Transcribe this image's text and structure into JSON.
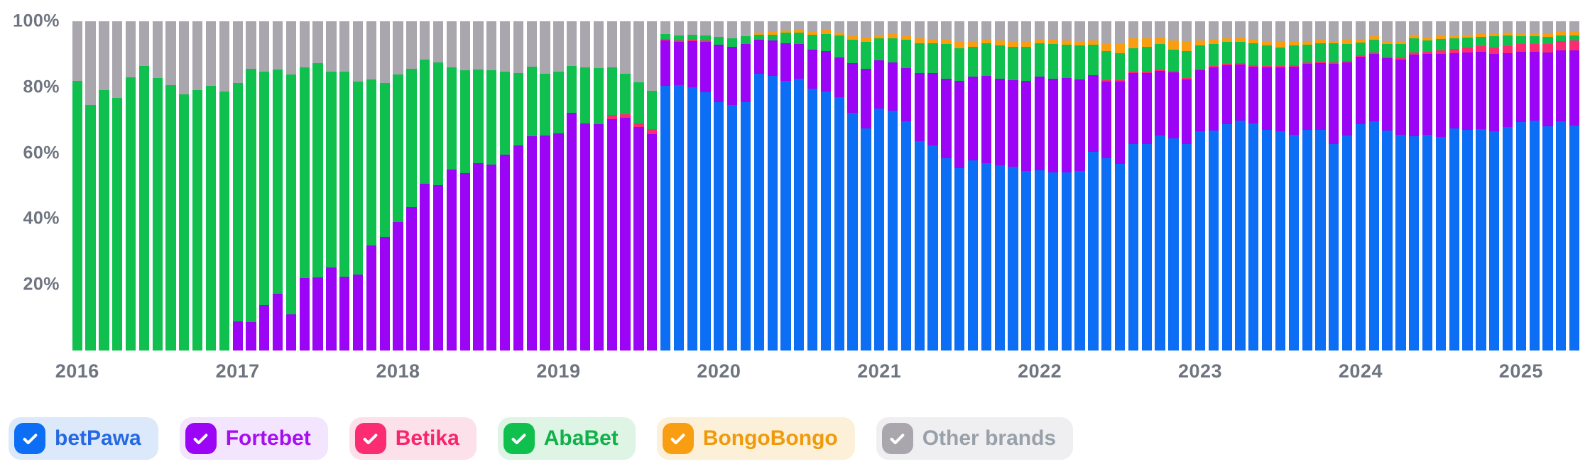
{
  "page": {
    "background": "#ffffff"
  },
  "y_axis": {
    "ticks": [
      "100%",
      "80%",
      "60%",
      "40%",
      "20%"
    ],
    "color": "#6e7480"
  },
  "x_axis": {
    "labels": [
      "2016",
      "2017",
      "2018",
      "2019",
      "2020",
      "2021",
      "2022",
      "2023",
      "2024",
      "2025"
    ],
    "color": "#6e7480"
  },
  "legend": {
    "position": "bottom-left",
    "items": [
      {
        "label": "betPawa",
        "checked": true,
        "color": "#0b6ef5",
        "bg": "#dce9fb",
        "text_color": "#2668e3"
      },
      {
        "label": "Fortebet",
        "checked": true,
        "color": "#9b04f5",
        "bg": "#f3e5fd",
        "text_color": "#a60df2"
      },
      {
        "label": "Betika",
        "checked": true,
        "color": "#fb2c72",
        "bg": "#fce1eb",
        "text_color": "#f8246c"
      },
      {
        "label": "AbaBet",
        "checked": true,
        "color": "#10c04f",
        "bg": "#def4e4",
        "text_color": "#0fb14a"
      },
      {
        "label": "BongoBongo",
        "checked": true,
        "color": "#f99e12",
        "bg": "#fcf0d8",
        "text_color": "#f0990a"
      },
      {
        "label": "Other brands",
        "checked": true,
        "color": "#a9a6ad",
        "bg": "#efeef0",
        "text_color": "#98a0aa"
      }
    ]
  },
  "chart_data": {
    "type": "bar",
    "stacked": true,
    "unit": "percent",
    "ylim": [
      0,
      100
    ],
    "grid": false,
    "frequency": "monthly",
    "x_start": "2016-01",
    "x_end": "2025-05",
    "series_names": [
      "betPawa",
      "Fortebet",
      "Betika",
      "AbaBet",
      "BongoBongo",
      "Other brands"
    ],
    "values": [
      [
        0,
        0,
        0,
        82.0,
        0,
        18.0
      ],
      [
        0,
        0,
        0,
        74.5,
        0,
        25.5
      ],
      [
        0,
        0,
        0,
        79.1,
        0,
        20.9
      ],
      [
        0,
        0,
        0,
        76.7,
        0,
        23.3
      ],
      [
        0,
        0,
        0,
        83.0,
        0,
        17.0
      ],
      [
        0,
        0,
        0,
        86.5,
        0,
        13.5
      ],
      [
        0,
        0,
        0,
        82.7,
        0,
        17.3
      ],
      [
        0,
        0,
        0,
        80.7,
        0,
        19.3
      ],
      [
        0,
        0,
        0,
        77.8,
        0,
        22.2
      ],
      [
        0,
        0,
        0,
        79.1,
        0,
        20.9
      ],
      [
        0,
        0,
        0,
        80.3,
        0,
        19.7
      ],
      [
        0,
        0,
        0,
        78.7,
        0,
        21.3
      ],
      [
        0,
        8.8,
        0,
        72.5,
        0,
        18.7
      ],
      [
        0,
        8.7,
        0,
        76.9,
        0,
        14.4
      ],
      [
        0,
        13.9,
        0,
        70.7,
        0,
        15.4
      ],
      [
        0,
        17.3,
        0,
        68.1,
        0,
        14.6
      ],
      [
        0,
        11.0,
        0,
        72.8,
        0,
        16.2
      ],
      [
        0,
        21.9,
        0,
        64.0,
        0,
        14.1
      ],
      [
        0,
        22.3,
        0,
        65.0,
        0,
        12.7
      ],
      [
        0,
        25.3,
        0,
        59.4,
        0,
        15.3
      ],
      [
        0,
        22.4,
        0,
        62.2,
        0,
        15.4
      ],
      [
        0,
        23.1,
        0,
        58.5,
        0,
        18.4
      ],
      [
        0,
        31.8,
        0,
        50.5,
        0,
        17.7
      ],
      [
        0,
        34.4,
        0,
        46.9,
        0,
        18.7
      ],
      [
        0,
        39.0,
        0,
        44.8,
        0,
        16.2
      ],
      [
        0,
        43.5,
        0,
        42.1,
        0,
        14.4
      ],
      [
        0,
        50.7,
        0,
        37.6,
        0,
        11.7
      ],
      [
        0,
        50.3,
        0,
        37.2,
        0,
        12.5
      ],
      [
        0,
        55.0,
        0,
        30.9,
        0,
        14.1
      ],
      [
        0,
        53.8,
        0,
        31.3,
        0,
        14.9
      ],
      [
        0,
        56.9,
        0,
        28.5,
        0,
        14.6
      ],
      [
        0,
        56.5,
        0,
        28.6,
        0,
        14.9
      ],
      [
        0,
        59.4,
        0,
        25.2,
        0,
        15.4
      ],
      [
        0,
        62.3,
        0,
        22.0,
        0,
        15.7
      ],
      [
        0,
        65.0,
        0,
        21.2,
        0,
        13.8
      ],
      [
        0,
        65.3,
        0,
        18.7,
        0,
        16.0
      ],
      [
        0,
        65.9,
        0,
        18.7,
        0,
        15.4
      ],
      [
        0,
        72.3,
        0,
        14.1,
        0,
        13.6
      ],
      [
        0,
        69.0,
        0,
        16.9,
        0,
        14.1
      ],
      [
        0,
        68.8,
        0,
        16.9,
        0,
        14.3
      ],
      [
        0,
        70.3,
        1.3,
        14.3,
        0,
        14.1
      ],
      [
        0,
        70.7,
        1.0,
        12.3,
        0,
        16.0
      ],
      [
        0,
        67.9,
        1.1,
        12.5,
        0,
        18.5
      ],
      [
        0,
        65.7,
        1.5,
        11.7,
        0,
        21.1
      ],
      [
        80.4,
        13.8,
        0.5,
        1.4,
        0,
        3.9
      ],
      [
        80.6,
        13.1,
        0.5,
        1.6,
        0,
        4.2
      ],
      [
        80.0,
        13.9,
        0.5,
        1.6,
        0,
        4.0
      ],
      [
        78.4,
        15.3,
        0.5,
        1.4,
        0,
        4.4
      ],
      [
        75.4,
        17.4,
        0,
        2.4,
        0,
        4.8
      ],
      [
        74.5,
        17.8,
        0,
        2.5,
        0,
        5.2
      ],
      [
        75.5,
        17.7,
        0,
        2.2,
        0,
        4.6
      ],
      [
        84.0,
        10.4,
        0,
        1.5,
        0.7,
        3.4
      ],
      [
        83.5,
        10.7,
        0,
        1.8,
        0.7,
        3.3
      ],
      [
        81.8,
        11.5,
        0,
        3.3,
        0.7,
        2.7
      ],
      [
        82.5,
        10.6,
        0,
        3.5,
        0.8,
        2.6
      ],
      [
        79.6,
        11.7,
        0,
        4.6,
        1.0,
        3.1
      ],
      [
        78.7,
        12.2,
        0,
        5.3,
        1.2,
        2.6
      ],
      [
        77.0,
        12.1,
        0,
        6.5,
        1.0,
        3.4
      ],
      [
        72.2,
        15.1,
        0,
        7.2,
        1.2,
        4.3
      ],
      [
        67.4,
        18.2,
        0,
        8.2,
        1.3,
        4.9
      ],
      [
        73.6,
        14.6,
        0,
        6.6,
        1.1,
        4.1
      ],
      [
        72.9,
        14.6,
        0,
        7.4,
        1.5,
        3.6
      ],
      [
        69.6,
        16.2,
        0,
        8.7,
        1.0,
        4.5
      ],
      [
        63.6,
        20.6,
        0,
        9.2,
        1.4,
        5.2
      ],
      [
        62.3,
        22.0,
        0,
        9.0,
        1.2,
        5.5
      ],
      [
        58.5,
        24.0,
        0,
        10.6,
        1.3,
        5.6
      ],
      [
        55.4,
        26.6,
        0,
        9.8,
        2.0,
        6.2
      ],
      [
        57.7,
        25.5,
        0,
        9.0,
        1.5,
        6.3
      ],
      [
        57.0,
        26.5,
        0,
        9.8,
        1.1,
        5.6
      ],
      [
        56.3,
        26.2,
        0,
        10.2,
        1.5,
        5.8
      ],
      [
        55.8,
        26.3,
        0,
        10.2,
        1.7,
        6.0
      ],
      [
        54.5,
        27.3,
        0,
        10.5,
        1.5,
        6.2
      ],
      [
        54.8,
        28.3,
        0,
        10.2,
        1.2,
        5.5
      ],
      [
        54.1,
        28.4,
        0,
        10.6,
        1.3,
        5.6
      ],
      [
        54.1,
        28.6,
        0,
        10.2,
        1.3,
        5.8
      ],
      [
        54.5,
        27.8,
        0,
        10.3,
        1.4,
        6.0
      ],
      [
        60.3,
        23.3,
        0,
        9.3,
        1.3,
        5.8
      ],
      [
        58.5,
        23.2,
        0.4,
        8.8,
        2.4,
        6.7
      ],
      [
        56.7,
        25.0,
        0.4,
        8.3,
        3.0,
        6.6
      ],
      [
        62.7,
        21.5,
        0.4,
        7.2,
        3.1,
        5.1
      ],
      [
        62.8,
        21.5,
        0.4,
        7.6,
        2.5,
        5.2
      ],
      [
        65.4,
        19.5,
        0.4,
        7.8,
        2.0,
        4.9
      ],
      [
        64.5,
        20.0,
        0.4,
        6.4,
        2.9,
        5.8
      ],
      [
        62.8,
        19.5,
        0.4,
        8.2,
        2.8,
        6.3
      ],
      [
        66.5,
        18.6,
        0.5,
        7.0,
        1.6,
        5.8
      ],
      [
        66.8,
        19.2,
        0.5,
        6.6,
        1.4,
        5.5
      ],
      [
        68.7,
        17.9,
        0.5,
        6.6,
        1.2,
        5.1
      ],
      [
        69.8,
        17.0,
        0.5,
        6.5,
        1.3,
        4.9
      ],
      [
        69.0,
        17.2,
        0.5,
        6.6,
        1.2,
        5.5
      ],
      [
        67.1,
        18.8,
        0.5,
        6.2,
        1.4,
        6.0
      ],
      [
        66.7,
        19.3,
        0.5,
        5.5,
        1.8,
        6.2
      ],
      [
        65.6,
        20.6,
        0.5,
        5.9,
        1.4,
        6.0
      ],
      [
        67.1,
        20.0,
        0.5,
        5.3,
        0.9,
        6.2
      ],
      [
        67.1,
        20.2,
        0.5,
        5.6,
        1.0,
        5.6
      ],
      [
        62.7,
        24.4,
        0.5,
        5.7,
        0.5,
        6.2
      ],
      [
        65.3,
        22.2,
        0.5,
        5.2,
        1.1,
        5.7
      ],
      [
        68.8,
        20.4,
        0.5,
        3.9,
        1.1,
        5.3
      ],
      [
        69.6,
        20.4,
        0.5,
        3.8,
        1.2,
        4.5
      ],
      [
        66.9,
        21.8,
        0.6,
        3.9,
        0.6,
        6.2
      ],
      [
        65.5,
        22.9,
        0.6,
        4.2,
        0.8,
        6.0
      ],
      [
        65.0,
        24.8,
        0.8,
        4.3,
        1.1,
        4.0
      ],
      [
        65.6,
        24.4,
        0.8,
        3.4,
        1.1,
        4.7
      ],
      [
        64.9,
        25.2,
        1.0,
        3.6,
        1.3,
        4.0
      ],
      [
        67.4,
        22.9,
        1.2,
        3.4,
        0.9,
        4.2
      ],
      [
        67.1,
        23.5,
        1.5,
        3.0,
        0.9,
        4.0
      ],
      [
        67.3,
        23.4,
        1.8,
        2.7,
        1.0,
        3.8
      ],
      [
        66.7,
        23.4,
        2.0,
        3.4,
        0.8,
        3.7
      ],
      [
        67.8,
        22.5,
        2.2,
        3.1,
        0.9,
        3.5
      ],
      [
        69.5,
        21.3,
        2.4,
        2.3,
        0.8,
        3.7
      ],
      [
        69.9,
        20.8,
        2.5,
        2.2,
        0.9,
        3.7
      ],
      [
        68.2,
        22.4,
        2.6,
        2.0,
        0.9,
        3.9
      ],
      [
        69.6,
        21.6,
        2.8,
        1.8,
        0.9,
        3.3
      ],
      [
        68.4,
        22.7,
        3.0,
        1.6,
        1.2,
        3.1
      ]
    ]
  }
}
